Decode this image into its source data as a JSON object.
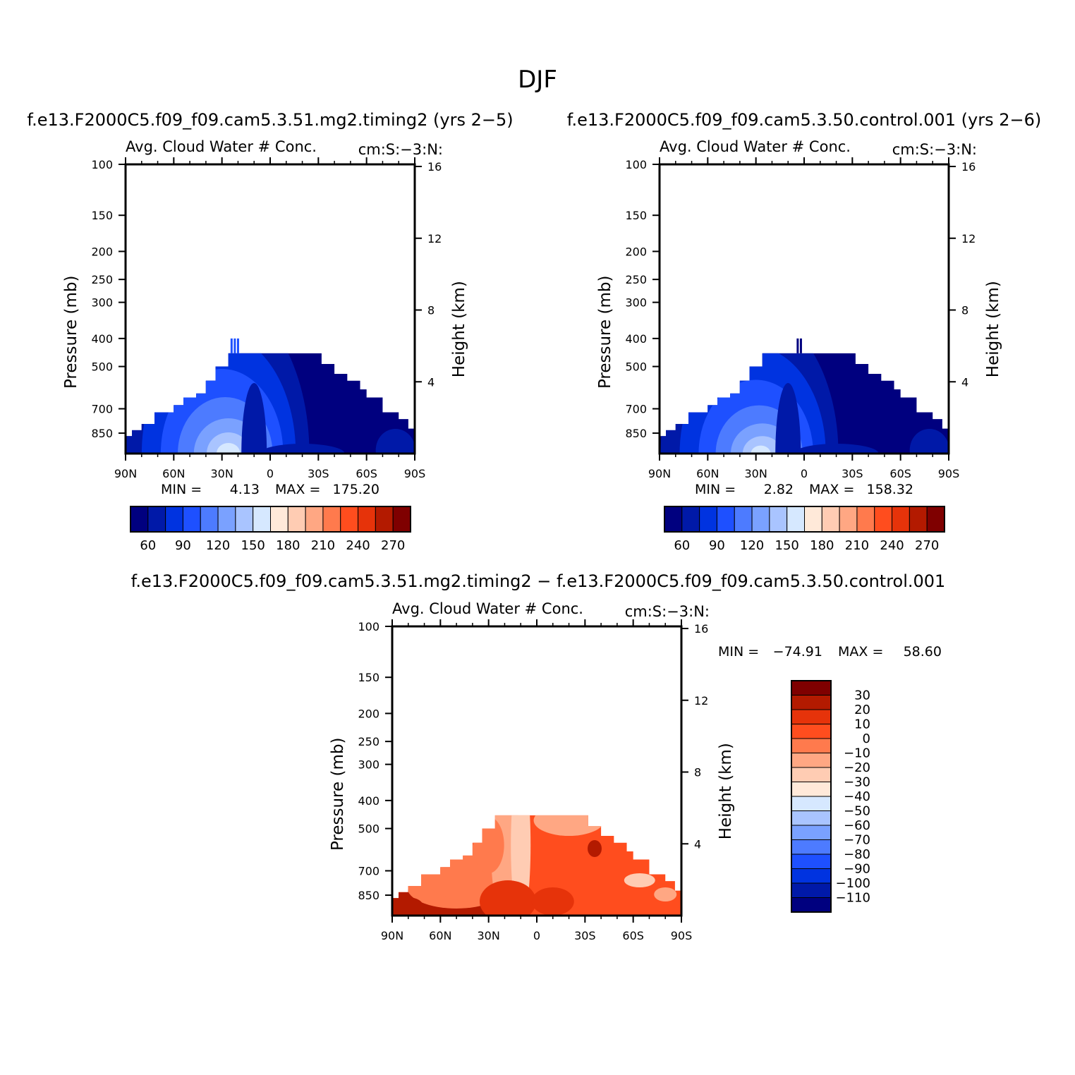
{
  "figure": {
    "title": "DJF"
  },
  "colors": {
    "sequential": [
      "#00007f",
      "#0019a8",
      "#0033e0",
      "#1e50ff",
      "#4d7bff",
      "#7aa1ff",
      "#a9c4ff",
      "#d6e8ff",
      "#ffe9d9",
      "#ffccb3",
      "#ffa783",
      "#ff7a4d",
      "#ff4d1e",
      "#e6330a",
      "#b31a00",
      "#7f0000"
    ],
    "difference": [
      "#7f0000",
      "#b31a00",
      "#e6330a",
      "#ff4d1e",
      "#ff7a4d",
      "#ffa783",
      "#ffccb3",
      "#ffe9d9",
      "#d6e8ff",
      "#a9c4ff",
      "#7aa1ff",
      "#4d7bff",
      "#1e50ff",
      "#0033e0",
      "#0019a8",
      "#00007f"
    ]
  },
  "chart_data": [
    {
      "type": "heatmap",
      "title": "f.e13.F2000C5.f09_f09.cam5.3.51.mg2.timing2 (yrs 2-5)",
      "left_string": "Avg. Cloud Water # Conc.",
      "right_string": "cm:S:-3:N:",
      "ylabel": "Pressure (mb)",
      "y2label": "Height (km)",
      "xticks": [
        "90N",
        "60N",
        "30N",
        "0",
        "30S",
        "60S",
        "90S"
      ],
      "yticks": [
        100,
        150,
        200,
        250,
        300,
        400,
        500,
        700,
        850
      ],
      "y2ticks": [
        4,
        8,
        12,
        16
      ],
      "ylim": [
        1000,
        100
      ],
      "y_scale": "log",
      "xlim": [
        90,
        -90
      ],
      "min_label": "MIN =",
      "min_value": "4.13",
      "max_label": "MAX =",
      "max_value": "175.20",
      "colorbar_labels": [
        "60",
        "90",
        "120",
        "150",
        "180",
        "210",
        "240",
        "270"
      ],
      "field_top_pressure": [
        [
          90,
          870
        ],
        [
          86,
          830
        ],
        [
          80,
          790
        ],
        [
          72,
          720
        ],
        [
          66,
          720
        ],
        [
          60,
          680
        ],
        [
          54,
          640
        ],
        [
          46,
          620
        ],
        [
          40,
          560
        ],
        [
          34,
          500
        ],
        [
          26,
          450
        ],
        [
          4,
          450
        ],
        [
          -12,
          450
        ],
        [
          -24,
          450
        ],
        [
          -32,
          490
        ],
        [
          -40,
          530
        ],
        [
          -48,
          560
        ],
        [
          -56,
          600
        ],
        [
          -60,
          640
        ],
        [
          -70,
          720
        ],
        [
          -80,
          760
        ],
        [
          -86,
          820
        ]
      ],
      "deep_towers": [
        [
          20,
          400
        ],
        [
          22,
          400
        ],
        [
          24,
          400
        ]
      ]
    },
    {
      "type": "heatmap",
      "title": "f.e13.F2000C5.f09_f09.cam5.3.50.control.001 (yrs 2-6)",
      "left_string": "Avg. Cloud Water # Conc.",
      "right_string": "cm:S:-3:N:",
      "ylabel": "Pressure (mb)",
      "y2label": "Height (km)",
      "xticks": [
        "90N",
        "60N",
        "30N",
        "0",
        "30S",
        "60S",
        "90S"
      ],
      "yticks": [
        100,
        150,
        200,
        250,
        300,
        400,
        500,
        700,
        850
      ],
      "y2ticks": [
        4,
        8,
        12,
        16
      ],
      "ylim": [
        1000,
        100
      ],
      "y_scale": "log",
      "xlim": [
        90,
        -90
      ],
      "min_label": "MIN =",
      "min_value": "2.82",
      "max_label": "MAX =",
      "max_value": "158.32",
      "colorbar_labels": [
        "60",
        "90",
        "120",
        "150",
        "180",
        "210",
        "240",
        "270"
      ],
      "field_top_pressure": [
        [
          90,
          870
        ],
        [
          86,
          830
        ],
        [
          80,
          790
        ],
        [
          72,
          720
        ],
        [
          66,
          720
        ],
        [
          60,
          680
        ],
        [
          54,
          640
        ],
        [
          46,
          620
        ],
        [
          40,
          560
        ],
        [
          34,
          500
        ],
        [
          26,
          450
        ],
        [
          4,
          450
        ],
        [
          -12,
          450
        ],
        [
          -24,
          450
        ],
        [
          -32,
          490
        ],
        [
          -40,
          530
        ],
        [
          -48,
          560
        ],
        [
          -56,
          600
        ],
        [
          -60,
          640
        ],
        [
          -70,
          720
        ],
        [
          -80,
          760
        ],
        [
          -86,
          820
        ]
      ],
      "deep_towers": [
        [
          2,
          400
        ],
        [
          4,
          400
        ]
      ]
    },
    {
      "type": "heatmap",
      "title": "f.e13.F2000C5.f09_f09.cam5.3.51.mg2.timing2 - f.e13.F2000C5.f09_f09.cam5.3.50.control.001",
      "left_string": "Avg. Cloud Water # Conc.",
      "right_string": "cm:S:-3:N:",
      "ylabel": "Pressure (mb)",
      "y2label": "Height (km)",
      "xticks": [
        "90N",
        "60N",
        "30N",
        "0",
        "30S",
        "60S",
        "90S"
      ],
      "yticks": [
        100,
        150,
        200,
        250,
        300,
        400,
        500,
        700,
        850
      ],
      "y2ticks": [
        4,
        8,
        12,
        16
      ],
      "ylim": [
        1000,
        100
      ],
      "y_scale": "log",
      "xlim": [
        90,
        -90
      ],
      "min_label": "MIN =",
      "min_value": "-74.91",
      "max_label": "MAX =",
      "max_value": "58.60",
      "colorbar_labels": [
        "30",
        "20",
        "10",
        "0",
        "-10",
        "-20",
        "-30",
        "-40",
        "-50",
        "-60",
        "-70",
        "-80",
        "-90",
        "-100",
        "-110"
      ],
      "field_top_pressure": [
        [
          90,
          870
        ],
        [
          86,
          830
        ],
        [
          80,
          790
        ],
        [
          72,
          720
        ],
        [
          66,
          720
        ],
        [
          60,
          680
        ],
        [
          54,
          640
        ],
        [
          46,
          620
        ],
        [
          40,
          560
        ],
        [
          34,
          500
        ],
        [
          26,
          450
        ],
        [
          4,
          450
        ],
        [
          -12,
          450
        ],
        [
          -24,
          450
        ],
        [
          -32,
          490
        ],
        [
          -40,
          530
        ],
        [
          -48,
          560
        ],
        [
          -56,
          600
        ],
        [
          -60,
          640
        ],
        [
          -70,
          720
        ],
        [
          -80,
          760
        ],
        [
          -86,
          820
        ]
      ]
    }
  ]
}
